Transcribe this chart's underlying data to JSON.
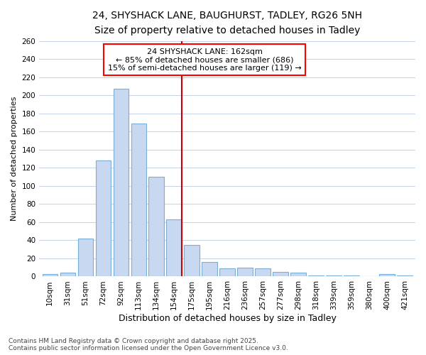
{
  "title": "24, SHYSHACK LANE, BAUGHURST, TADLEY, RG26 5NH",
  "subtitle": "Size of property relative to detached houses in Tadley",
  "xlabel": "Distribution of detached houses by size in Tadley",
  "ylabel": "Number of detached properties",
  "categories": [
    "10sqm",
    "31sqm",
    "51sqm",
    "72sqm",
    "92sqm",
    "113sqm",
    "134sqm",
    "154sqm",
    "175sqm",
    "195sqm",
    "216sqm",
    "236sqm",
    "257sqm",
    "277sqm",
    "298sqm",
    "318sqm",
    "339sqm",
    "359sqm",
    "380sqm",
    "400sqm",
    "421sqm"
  ],
  "values": [
    3,
    4,
    42,
    128,
    207,
    169,
    110,
    63,
    35,
    16,
    9,
    10,
    9,
    5,
    4,
    1,
    1,
    1,
    0,
    3,
    1
  ],
  "bar_color": "#c8d8f0",
  "bar_edge_color": "#7aaed6",
  "vline_color": "#cc0000",
  "vline_x_index": 7,
  "annotation_text_line1": "24 SHYSHACK LANE: 162sqm",
  "annotation_text_line2": "← 85% of detached houses are smaller (686)",
  "annotation_text_line3": "15% of semi-detached houses are larger (119) →",
  "ylim": [
    0,
    260
  ],
  "yticks": [
    0,
    20,
    40,
    60,
    80,
    100,
    120,
    140,
    160,
    180,
    200,
    220,
    240,
    260
  ],
  "fig_background_color": "#ffffff",
  "plot_background_color": "#ffffff",
  "grid_color": "#c8d4e8",
  "footer_line1": "Contains HM Land Registry data © Crown copyright and database right 2025.",
  "footer_line2": "Contains public sector information licensed under the Open Government Licence v3.0.",
  "title_fontsize": 10,
  "subtitle_fontsize": 9,
  "ylabel_fontsize": 8,
  "xlabel_fontsize": 9,
  "tick_fontsize": 7.5,
  "annotation_fontsize": 8,
  "footer_fontsize": 6.5
}
